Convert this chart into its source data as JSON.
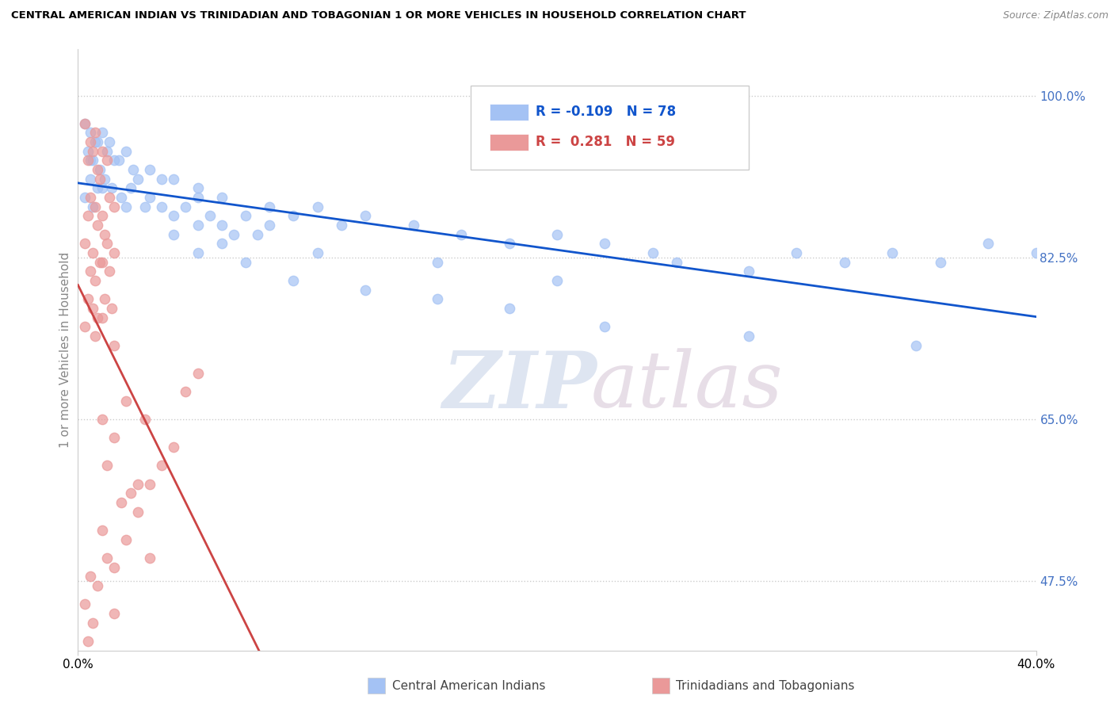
{
  "title": "CENTRAL AMERICAN INDIAN VS TRINIDADIAN AND TOBAGONIAN 1 OR MORE VEHICLES IN HOUSEHOLD CORRELATION CHART",
  "source": "Source: ZipAtlas.com",
  "ylabel": "1 or more Vehicles in Household",
  "xmin": 0.0,
  "xmax": 40.0,
  "ymin": 40.0,
  "ymax": 105.0,
  "blue_R": -0.109,
  "blue_N": 78,
  "pink_R": 0.281,
  "pink_N": 59,
  "blue_color": "#a4c2f4",
  "pink_color": "#ea9999",
  "blue_line_color": "#1155cc",
  "pink_line_color": "#cc4444",
  "legend_label_blue": "Central American Indians",
  "legend_label_pink": "Trinidadians and Tobagonians",
  "yticks": [
    47.5,
    65.0,
    82.5,
    100.0
  ],
  "ytick_labels": [
    "47.5%",
    "65.0%",
    "82.5%",
    "100.0%"
  ],
  "right_tick_color": "#4472c4",
  "grid_color": "#cccccc",
  "watermark_zip_color": "#c8d4e8",
  "watermark_atlas_color": "#d8c8d8"
}
